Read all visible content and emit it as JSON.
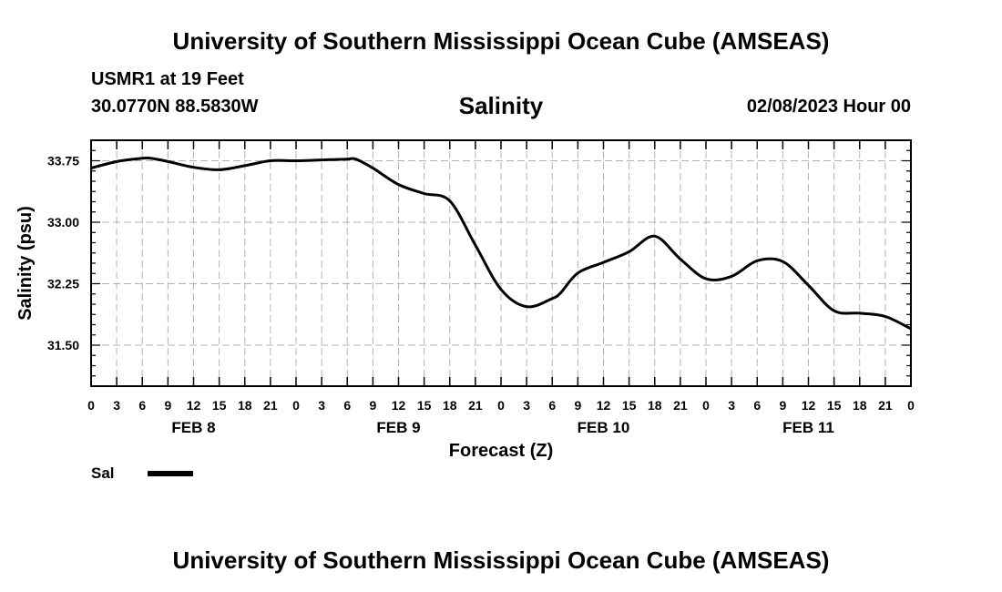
{
  "page": {
    "title_top": "University of Southern Mississippi Ocean Cube (AMSEAS)",
    "title_bottom": "University of Southern Mississippi Ocean Cube (AMSEAS)",
    "station": "USMR1 at 19 Feet",
    "coords": "30.0770N  88.5830W",
    "date": "02/08/2023 Hour 00"
  },
  "chart_data": {
    "type": "line",
    "title": "Salinity",
    "xlabel": "Forecast (Z)",
    "ylabel": "Salinity (psu)",
    "ylim": [
      31.0,
      34.0
    ],
    "yticks": [
      31.5,
      32.25,
      33.0,
      33.75
    ],
    "ytick_labels": [
      "31.50",
      "32.25",
      "33.00",
      "33.75"
    ],
    "xlim": [
      0,
      96
    ],
    "xtick_hours": [
      0,
      3,
      6,
      9,
      12,
      15,
      18,
      21,
      24,
      27,
      30,
      33,
      36,
      39,
      42,
      45,
      48,
      51,
      54,
      57,
      60,
      63,
      66,
      69,
      72,
      75,
      78,
      81,
      84,
      87,
      90,
      93,
      96
    ],
    "xtick_labels": [
      "0",
      "3",
      "6",
      "9",
      "12",
      "15",
      "18",
      "21",
      "0",
      "3",
      "6",
      "9",
      "12",
      "15",
      "18",
      "21",
      "0",
      "3",
      "6",
      "9",
      "12",
      "15",
      "18",
      "21",
      "0",
      "3",
      "6",
      "9",
      "12",
      "15",
      "18",
      "21",
      "0"
    ],
    "day_labels": [
      {
        "label": "FEB 8",
        "hour": 12
      },
      {
        "label": "FEB 9",
        "hour": 36
      },
      {
        "label": "FEB 10",
        "hour": 60
      },
      {
        "label": "FEB 11",
        "hour": 84
      }
    ],
    "grid": true,
    "series": [
      {
        "name": "Sal",
        "x": [
          0,
          3,
          6,
          7,
          9,
          12,
          15,
          18,
          21,
          24,
          27,
          30,
          31,
          33,
          36,
          39,
          42,
          45,
          48,
          51,
          54,
          55,
          57,
          60,
          63,
          66,
          69,
          72,
          75,
          78,
          81,
          84,
          87,
          90,
          93,
          96
        ],
        "y": [
          33.66,
          33.74,
          33.78,
          33.78,
          33.74,
          33.67,
          33.64,
          33.69,
          33.75,
          33.75,
          33.76,
          33.77,
          33.77,
          33.66,
          33.46,
          33.35,
          33.26,
          32.72,
          32.18,
          31.97,
          32.07,
          32.14,
          32.38,
          32.51,
          32.64,
          32.83,
          32.55,
          32.31,
          32.34,
          32.53,
          32.52,
          32.23,
          31.92,
          31.89,
          31.85,
          31.7
        ]
      }
    ],
    "legend": {
      "label": "Sal",
      "position": "bottom-left"
    }
  }
}
